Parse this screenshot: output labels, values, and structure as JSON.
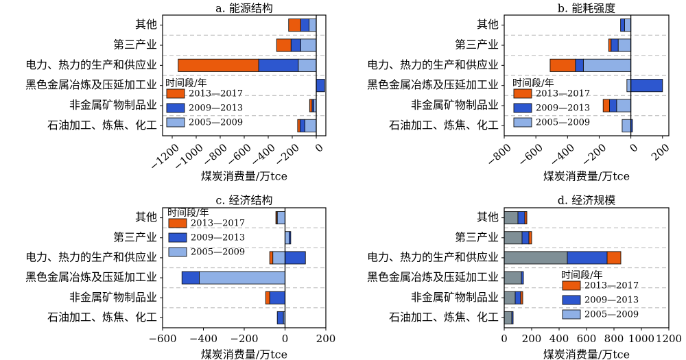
{
  "figure": {
    "categories": [
      "其他",
      "第三产业",
      "电力、热力的生产和供应业",
      "黑色金属冶炼及压延加工业",
      "非金属矿物制品业",
      "石油加工、炼焦、化工"
    ],
    "colors": {
      "2013—2017": "#ea5a0c",
      "2009—2013": "#2d57cf",
      "2005—2009": "#8fb0e6",
      "total_bar": "#7f8f96"
    }
  },
  "chart_data": [
    {
      "type": "bar",
      "orientation": "horizontal",
      "stacked": true,
      "title": "a. 能源结构",
      "xlabel": "煤炭消费量/万tce",
      "xlim": [
        -1280,
        80
      ],
      "xticks": [
        -1200,
        -1000,
        -800,
        -600,
        -400,
        -200,
        0
      ],
      "legend": {
        "title": "时间段/年",
        "entries": [
          "2013—2017",
          "2009—2013",
          "2005—2009"
        ],
        "placement": "left"
      },
      "series": [
        {
          "name": "2005—2009",
          "values": [
            -60,
            -130,
            -150,
            0,
            -20,
            -95
          ]
        },
        {
          "name": "2009—2013",
          "values": [
            -70,
            -80,
            -330,
            70,
            -15,
            -40
          ]
        },
        {
          "name": "2013—2017",
          "values": [
            -100,
            -120,
            -670,
            0,
            -20,
            -20
          ]
        }
      ]
    },
    {
      "type": "bar",
      "orientation": "horizontal",
      "stacked": true,
      "title": "b. 能耗强度",
      "xlabel": "煤炭消费量/万tce",
      "xlim": [
        -800,
        240
      ],
      "xticks": [
        -800,
        -600,
        -400,
        -200,
        0,
        200
      ],
      "legend": {
        "title": "时间段/年",
        "entries": [
          "2013—2017",
          "2009—2013",
          "2005—2009"
        ],
        "placement": "left"
      },
      "series": [
        {
          "name": "2005—2009",
          "values": [
            -40,
            -80,
            -300,
            -25,
            -90,
            -55
          ]
        },
        {
          "name": "2009—2013",
          "values": [
            -25,
            -45,
            -50,
            200,
            -45,
            10
          ]
        },
        {
          "name": "2013—2017",
          "values": [
            0,
            -15,
            -160,
            0,
            -40,
            0
          ]
        }
      ]
    },
    {
      "type": "bar",
      "orientation": "horizontal",
      "stacked": true,
      "title": "c. 经济结构",
      "xlabel": "煤炭消费量/万tce",
      "xlim": [
        -600,
        200
      ],
      "xticks": [
        -600,
        -400,
        -200,
        0,
        200
      ],
      "legend": {
        "title": "时间段/年",
        "entries": [
          "2013—2017",
          "2009—2013",
          "2005—2009"
        ],
        "placement": "top-left"
      },
      "series": [
        {
          "name": "2005—2009",
          "values": [
            -38,
            20,
            -60,
            -420,
            0,
            -8
          ]
        },
        {
          "name": "2009—2013",
          "values": [
            -2,
            8,
            100,
            -85,
            -75,
            -30
          ]
        },
        {
          "name": "2013—2017",
          "values": [
            -5,
            0,
            -15,
            0,
            -20,
            0
          ]
        }
      ]
    },
    {
      "type": "bar",
      "orientation": "horizontal",
      "stacked": true,
      "title": "d. 经济规模",
      "xlabel": "煤炭消费量/万tce",
      "xlim": [
        0,
        1200
      ],
      "xticks": [
        0,
        200,
        400,
        600,
        800,
        1000,
        1200
      ],
      "legend": {
        "title": "时间段/年",
        "entries": [
          "2013—2017",
          "2009—2013",
          "2005—2009"
        ],
        "placement": "bottom-right"
      },
      "series": [
        {
          "name": "2005—2009",
          "values": [
            100,
            130,
            460,
            125,
            80,
            55
          ]
        },
        {
          "name": "2009—2013",
          "values": [
            50,
            50,
            290,
            15,
            40,
            10
          ]
        },
        {
          "name": "2013—2017",
          "values": [
            15,
            20,
            100,
            0,
            15,
            0
          ]
        }
      ]
    }
  ]
}
